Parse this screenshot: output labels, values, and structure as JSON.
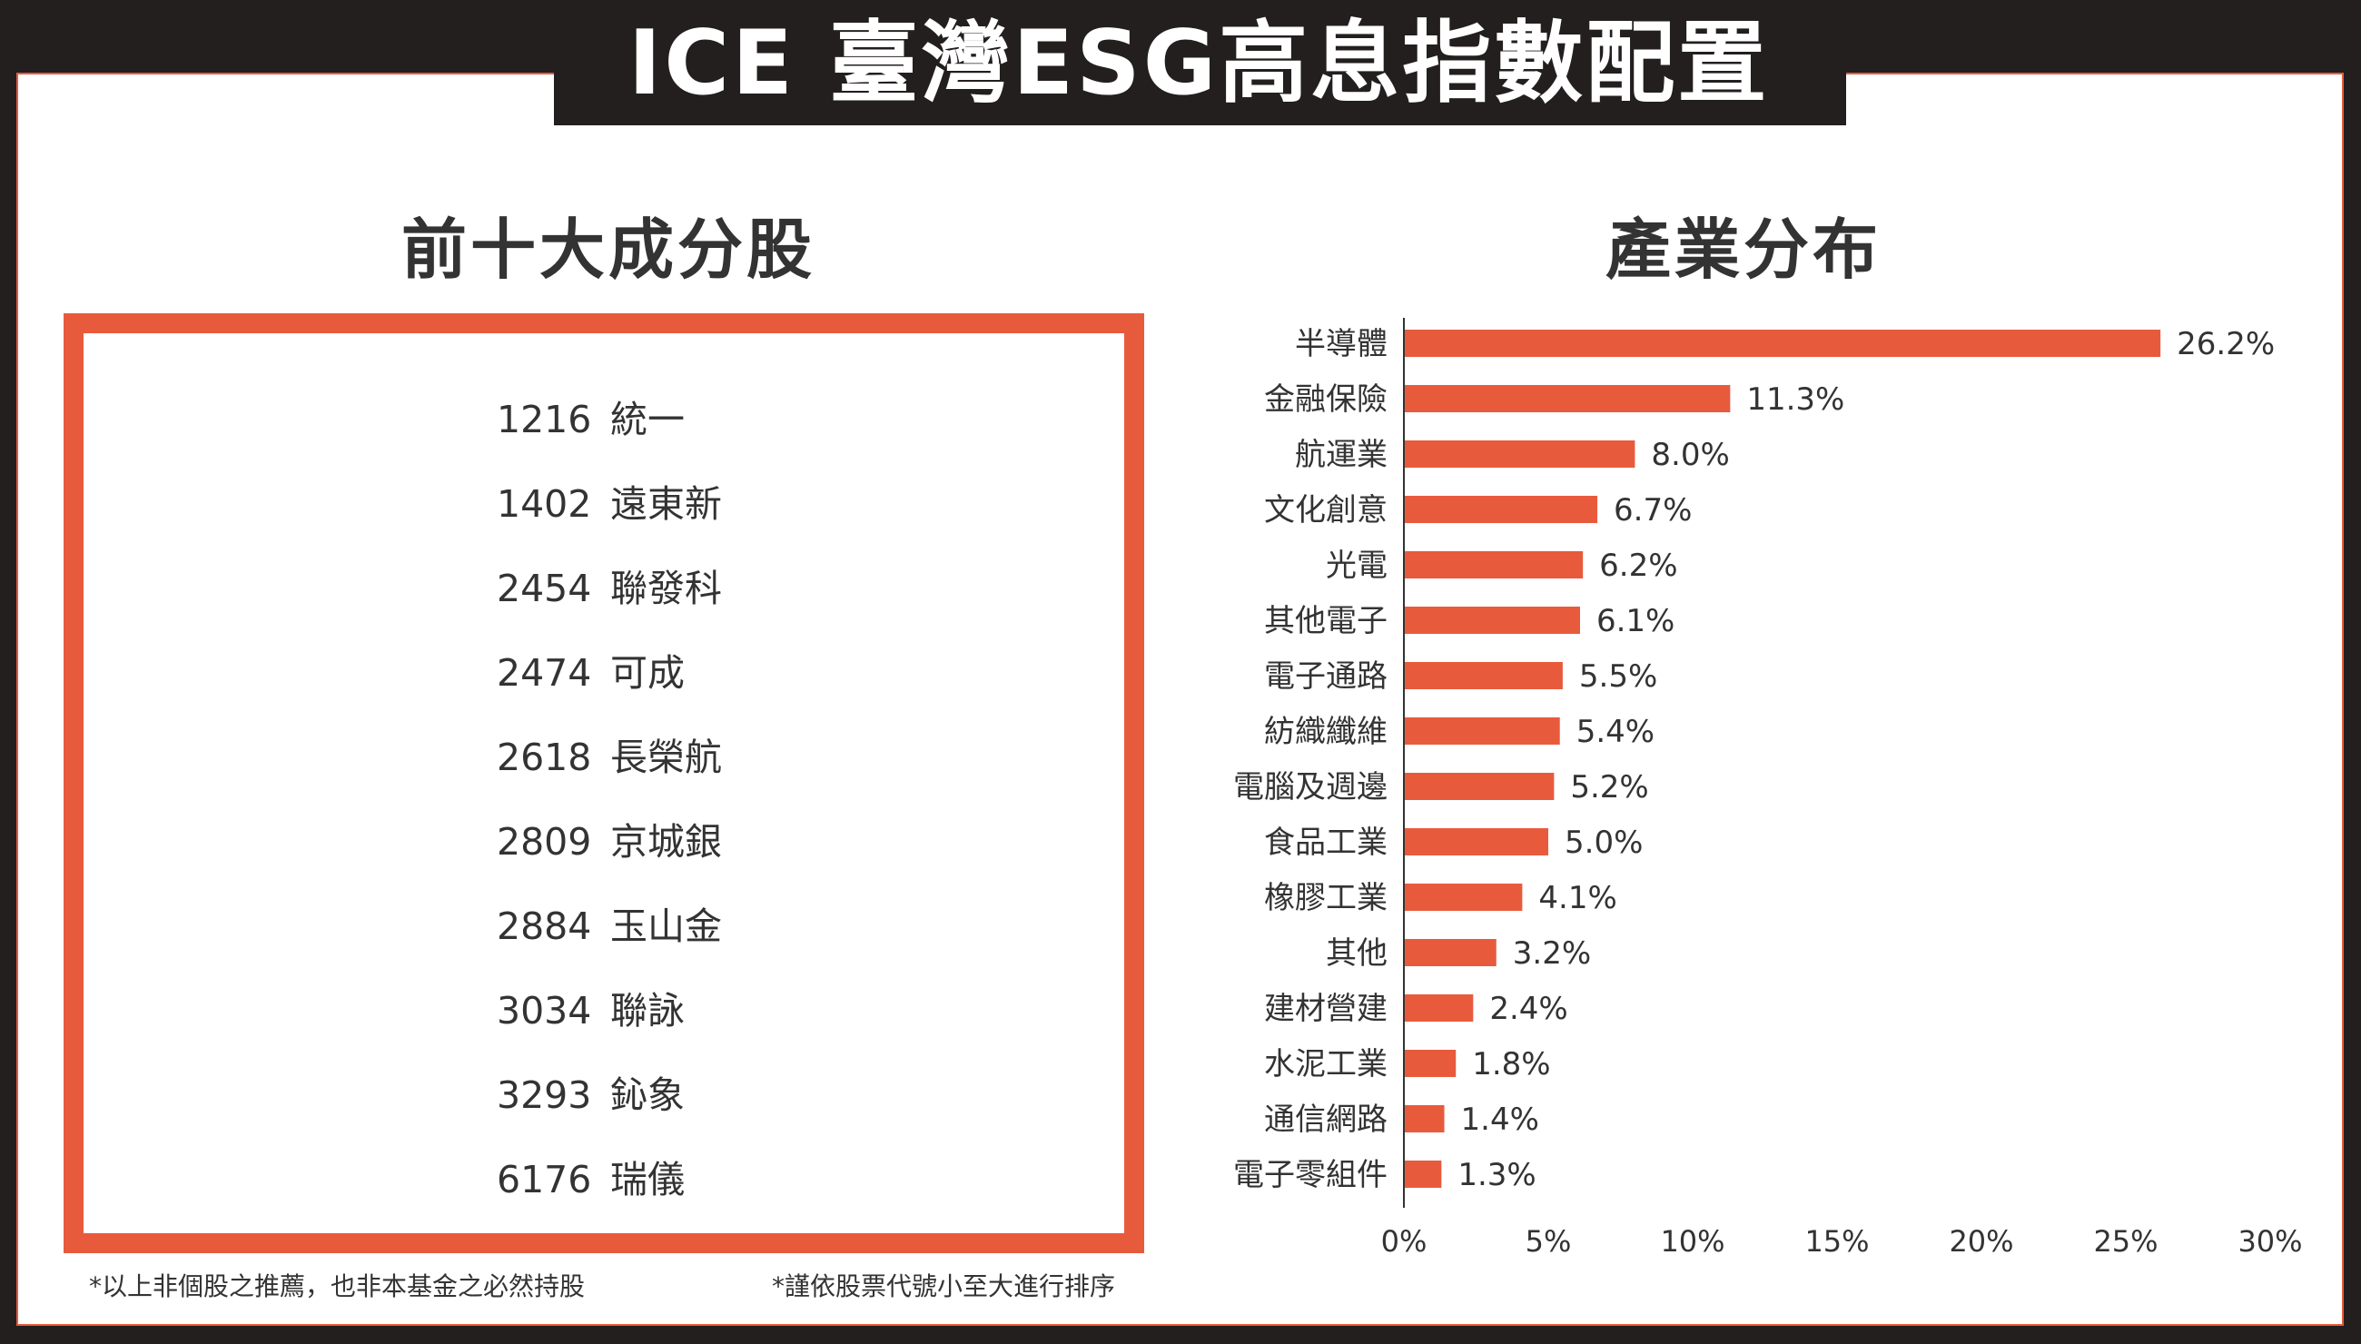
{
  "title": "ICE 臺灣ESG高息指數配置",
  "top_ten": {
    "heading": "前十大成分股",
    "holdings": [
      {
        "code": "1216",
        "name": "統一"
      },
      {
        "code": "1402",
        "name": "遠東新"
      },
      {
        "code": "2454",
        "name": "聯發科"
      },
      {
        "code": "2474",
        "name": "可成"
      },
      {
        "code": "2618",
        "name": "長榮航"
      },
      {
        "code": "2809",
        "name": "京城銀"
      },
      {
        "code": "2884",
        "name": "玉山金"
      },
      {
        "code": "3034",
        "name": "聯詠"
      },
      {
        "code": "3293",
        "name": "鈊象"
      },
      {
        "code": "6176",
        "name": "瑞儀"
      }
    ]
  },
  "industry": {
    "heading": "產業分布"
  },
  "notes": {
    "disclaimer": "*以上非個股之推薦，也非本基金之必然持股",
    "sort": "*謹依股票代號小至大進行排序"
  },
  "colors": {
    "accent": "#e85a3c",
    "dark": "#231f1e",
    "text": "#333333",
    "panel": "#ffffff"
  },
  "chart_data": {
    "type": "bar",
    "orientation": "horizontal",
    "title": "產業分布",
    "categories": [
      "半導體",
      "金融保險",
      "航運業",
      "文化創意",
      "光電",
      "其他電子",
      "電子通路",
      "紡織纖維",
      "電腦及週邊",
      "食品工業",
      "橡膠工業",
      "其他",
      "建材營建",
      "水泥工業",
      "通信網路",
      "電子零組件"
    ],
    "values": [
      26.2,
      11.3,
      8.0,
      6.7,
      6.2,
      6.1,
      5.5,
      5.4,
      5.2,
      5.0,
      4.1,
      3.2,
      2.4,
      1.8,
      1.4,
      1.3
    ],
    "value_labels": [
      "26.2%",
      "11.3%",
      "8.0%",
      "6.7%",
      "6.2%",
      "6.1%",
      "5.5%",
      "5.4%",
      "5.2%",
      "5.0%",
      "4.1%",
      "3.2%",
      "2.4%",
      "1.8%",
      "1.4%",
      "1.3%"
    ],
    "xlim": [
      0,
      30
    ],
    "xticks": [
      0,
      5,
      10,
      15,
      20,
      25,
      30
    ],
    "xtick_labels": [
      "0%",
      "5%",
      "10%",
      "15%",
      "20%",
      "25%",
      "30%"
    ],
    "grid": false,
    "legend": "none",
    "bar_color": "#e85a3c"
  }
}
